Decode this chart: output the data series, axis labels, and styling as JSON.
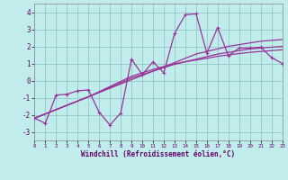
{
  "xlabel": "Windchill (Refroidissement éolien,°C)",
  "background_color": "#c0ecec",
  "line_color": "#993399",
  "grid_color": "#99cccc",
  "xlim": [
    0,
    23
  ],
  "ylim": [
    -3.5,
    4.5
  ],
  "xticks": [
    0,
    1,
    2,
    3,
    4,
    5,
    6,
    7,
    8,
    9,
    10,
    11,
    12,
    13,
    14,
    15,
    16,
    17,
    18,
    19,
    20,
    21,
    22,
    23
  ],
  "yticks": [
    -3,
    -2,
    -1,
    0,
    1,
    2,
    3,
    4
  ],
  "line1_x": [
    0,
    1,
    2,
    3,
    4,
    5,
    6,
    7,
    8,
    9,
    10,
    11,
    12,
    13,
    14,
    15,
    16,
    17,
    18,
    19,
    20,
    21,
    22,
    23
  ],
  "line1_y": [
    -2.2,
    -1.95,
    -1.7,
    -1.45,
    -1.2,
    -0.95,
    -0.7,
    -0.45,
    -0.2,
    0.05,
    0.3,
    0.55,
    0.8,
    1.05,
    1.3,
    1.55,
    1.7,
    1.85,
    2.0,
    2.1,
    2.2,
    2.3,
    2.35,
    2.4
  ],
  "line2_x": [
    0,
    1,
    2,
    3,
    4,
    5,
    6,
    7,
    8,
    9,
    10,
    11,
    12,
    13,
    14,
    15,
    16,
    17,
    18,
    19,
    20,
    21,
    22,
    23
  ],
  "line2_y": [
    -2.2,
    -1.95,
    -1.7,
    -1.45,
    -1.2,
    -0.95,
    -0.68,
    -0.4,
    -0.13,
    0.15,
    0.35,
    0.55,
    0.75,
    0.95,
    1.1,
    1.25,
    1.4,
    1.55,
    1.65,
    1.75,
    1.85,
    1.9,
    1.95,
    2.0
  ],
  "line3_x": [
    0,
    1,
    2,
    3,
    4,
    5,
    6,
    7,
    8,
    9,
    10,
    11,
    12,
    13,
    14,
    15,
    16,
    17,
    18,
    19,
    20,
    21,
    22,
    23
  ],
  "line3_y": [
    -2.2,
    -1.95,
    -1.7,
    -1.45,
    -1.2,
    -0.95,
    -0.65,
    -0.35,
    -0.05,
    0.25,
    0.45,
    0.65,
    0.82,
    0.98,
    1.1,
    1.2,
    1.3,
    1.42,
    1.5,
    1.58,
    1.65,
    1.7,
    1.75,
    1.8
  ],
  "main_x": [
    0,
    1,
    2,
    3,
    4,
    5,
    6,
    7,
    8,
    9,
    10,
    11,
    12,
    13,
    14,
    15,
    16,
    17,
    18,
    19,
    20,
    21,
    22,
    23
  ],
  "main_y": [
    -2.2,
    -2.5,
    -0.85,
    -0.8,
    -0.6,
    -0.55,
    -1.85,
    -2.6,
    -1.9,
    1.25,
    0.35,
    1.1,
    0.45,
    2.75,
    3.85,
    3.9,
    1.6,
    3.1,
    1.45,
    1.9,
    1.9,
    1.95,
    1.35,
    1.0
  ]
}
